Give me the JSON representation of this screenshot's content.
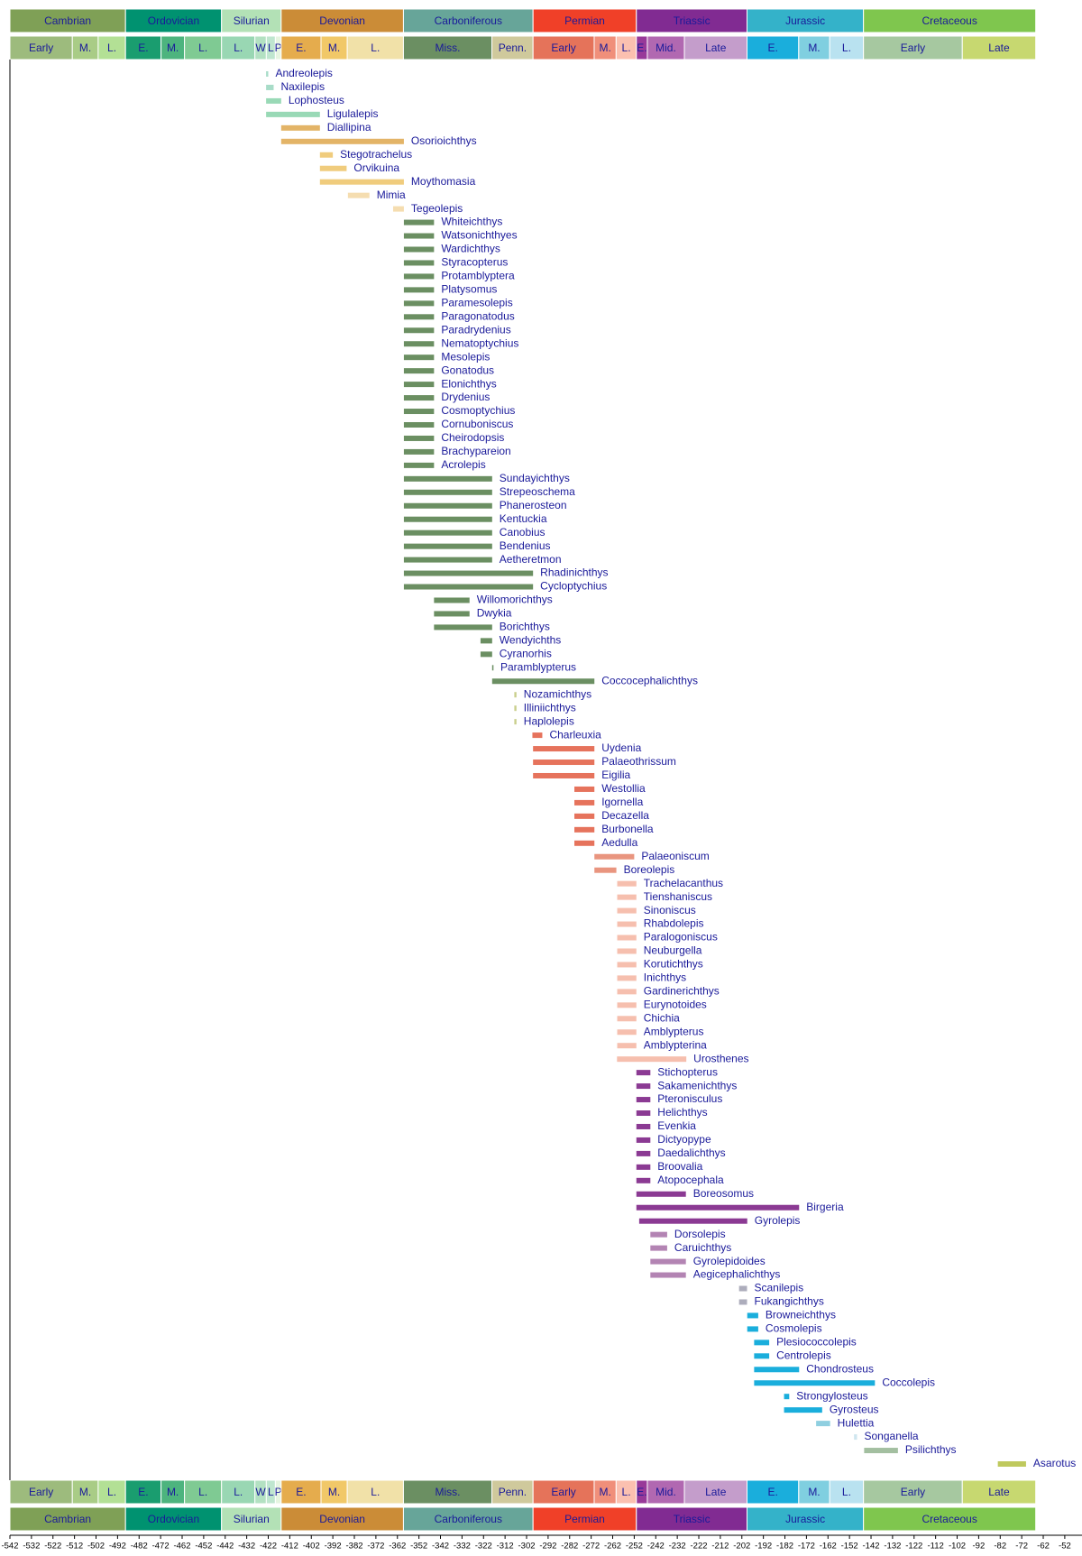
{
  "chart_data": {
    "type": "range",
    "xlim": [
      -542,
      -44
    ],
    "xticks": [
      -542,
      -532,
      -522,
      -512,
      -502,
      -492,
      -482,
      -472,
      -462,
      -452,
      -442,
      -432,
      -422,
      -412,
      -402,
      -392,
      -382,
      -372,
      -362,
      -352,
      -342,
      -332,
      -322,
      -312,
      -302,
      -292,
      -282,
      -272,
      -262,
      -252,
      -242,
      -232,
      -222,
      -212,
      -202,
      -192,
      -182,
      -172,
      -162,
      -152,
      -142,
      -132,
      -122,
      -112,
      -102,
      -92,
      -82,
      -72,
      -62,
      -52
    ],
    "label_color": "#1a1a9a",
    "periods": [
      {
        "name": "Cambrian",
        "start": -542,
        "end": -488.3,
        "color": "#7fa056"
      },
      {
        "name": "Ordovician",
        "start": -488.3,
        "end": -443.7,
        "color": "#009270"
      },
      {
        "name": "Silurian",
        "start": -443.7,
        "end": -416,
        "color": "#b3e1b6"
      },
      {
        "name": "Devonian",
        "start": -416,
        "end": -359.2,
        "color": "#cb8c37"
      },
      {
        "name": "Carboniferous",
        "start": -359.2,
        "end": -299,
        "color": "#67a599"
      },
      {
        "name": "Permian",
        "start": -299,
        "end": -251,
        "color": "#f04028"
      },
      {
        "name": "Triassic",
        "start": -251,
        "end": -199.6,
        "color": "#812b92"
      },
      {
        "name": "Jurassic",
        "start": -199.6,
        "end": -145.5,
        "color": "#34b2c9"
      },
      {
        "name": "Cretaceous",
        "start": -145.5,
        "end": -65.5,
        "color": "#7fc64e"
      }
    ],
    "epochs": [
      {
        "name": "Early",
        "start": -542,
        "end": -513,
        "color": "#9dbb7d"
      },
      {
        "name": "M.",
        "start": -513,
        "end": -501,
        "color": "#a9cc86"
      },
      {
        "name": "L.",
        "start": -501,
        "end": -488.3,
        "color": "#b3e095"
      },
      {
        "name": "E.",
        "start": -488.3,
        "end": -471.8,
        "color": "#1a9d6f"
      },
      {
        "name": "M.",
        "start": -471.8,
        "end": -460.9,
        "color": "#4db47e"
      },
      {
        "name": "L.",
        "start": -460.9,
        "end": -443.7,
        "color": "#7fca93"
      },
      {
        "name": "L.",
        "start": -443.7,
        "end": -428.2,
        "color": "#99d7b3"
      },
      {
        "name": "W",
        "start": -428.2,
        "end": -422.9,
        "color": "#b3e1c2"
      },
      {
        "name": "L",
        "start": -422.9,
        "end": -418.7,
        "color": "#bfe6cf"
      },
      {
        "name": "P",
        "start": -418.7,
        "end": -416,
        "color": "#e6f5e1"
      },
      {
        "name": "E.",
        "start": -416,
        "end": -397.5,
        "color": "#e5ac4d"
      },
      {
        "name": "M.",
        "start": -397.5,
        "end": -385.3,
        "color": "#f1c868"
      },
      {
        "name": "L.",
        "start": -385.3,
        "end": -359.2,
        "color": "#f1e1a8"
      },
      {
        "name": "Miss.",
        "start": -359.2,
        "end": -318.1,
        "color": "#6b8f62"
      },
      {
        "name": "Penn.",
        "start": -318.1,
        "end": -299,
        "color": "#cfc99c"
      },
      {
        "name": "Early",
        "start": -299,
        "end": -270.6,
        "color": "#e5735a"
      },
      {
        "name": "M.",
        "start": -270.6,
        "end": -260.4,
        "color": "#f08f7a"
      },
      {
        "name": "L.",
        "start": -260.4,
        "end": -251,
        "color": "#fbc0b0"
      },
      {
        "name": "E.",
        "start": -251,
        "end": -245.9,
        "color": "#983999"
      },
      {
        "name": "Mid.",
        "start": -245.9,
        "end": -228.7,
        "color": "#b168b1"
      },
      {
        "name": "Late",
        "start": -228.7,
        "end": -199.6,
        "color": "#c49dcb"
      },
      {
        "name": "E.",
        "start": -199.6,
        "end": -175.6,
        "color": "#1aaedc"
      },
      {
        "name": "M.",
        "start": -175.6,
        "end": -161.2,
        "color": "#80cfe0"
      },
      {
        "name": "L.",
        "start": -161.2,
        "end": -145.5,
        "color": "#b9e2f0"
      },
      {
        "name": "Early",
        "start": -145.5,
        "end": -99.6,
        "color": "#a6c8a0"
      },
      {
        "name": "Late",
        "start": -99.6,
        "end": -65.5,
        "color": "#c7d870"
      }
    ],
    "series": [
      {
        "name": "Andreolepis",
        "color": "#a8dcc8",
        "values": [
          -423,
          -422
        ]
      },
      {
        "name": "Naxilepis",
        "color": "#a8dcc8",
        "values": [
          -423,
          -419.5
        ]
      },
      {
        "name": "Lophosteus",
        "color": "#99d9b6",
        "values": [
          -423,
          -416
        ]
      },
      {
        "name": "Ligulalepis",
        "color": "#99d9b6",
        "values": [
          -423,
          -398
        ]
      },
      {
        "name": "Diallipina",
        "color": "#e3b467",
        "values": [
          -416,
          -398
        ]
      },
      {
        "name": "Osorioichthys",
        "color": "#e3b467",
        "values": [
          -416,
          -359
        ]
      },
      {
        "name": "Stegotrachelus",
        "color": "#f0cc7d",
        "values": [
          -398,
          -392
        ]
      },
      {
        "name": "Orvikuina",
        "color": "#f0cc7d",
        "values": [
          -398,
          -385.6
        ]
      },
      {
        "name": "Moythomasia",
        "color": "#f0cc7d",
        "values": [
          -398,
          -359
        ]
      },
      {
        "name": "Mimia",
        "color": "#f5ddb0",
        "values": [
          -385,
          -375
        ]
      },
      {
        "name": "Tegeolepis",
        "color": "#f5ddb0",
        "values": [
          -364,
          -359
        ]
      },
      {
        "name": "Whiteichthys",
        "color": "#6b8f62",
        "values": [
          -359,
          -345
        ]
      },
      {
        "name": "Watsonichthyes",
        "color": "#6b8f62",
        "values": [
          -359,
          -345
        ]
      },
      {
        "name": "Wardichthys",
        "color": "#6b8f62",
        "values": [
          -359,
          -345
        ]
      },
      {
        "name": "Styracopterus",
        "color": "#6b8f62",
        "values": [
          -359,
          -345
        ]
      },
      {
        "name": "Protamblyptera",
        "color": "#6b8f62",
        "values": [
          -359,
          -345
        ]
      },
      {
        "name": "Platysomus",
        "color": "#6b8f62",
        "values": [
          -359,
          -345
        ]
      },
      {
        "name": "Paramesolepis",
        "color": "#6b8f62",
        "values": [
          -359,
          -345
        ]
      },
      {
        "name": "Paragonatodus",
        "color": "#6b8f62",
        "values": [
          -359,
          -345
        ]
      },
      {
        "name": "Paradrydenius",
        "color": "#6b8f62",
        "values": [
          -359,
          -345
        ]
      },
      {
        "name": "Nematoptychius",
        "color": "#6b8f62",
        "values": [
          -359,
          -345
        ]
      },
      {
        "name": "Mesolepis",
        "color": "#6b8f62",
        "values": [
          -359,
          -345
        ]
      },
      {
        "name": "Gonatodus",
        "color": "#6b8f62",
        "values": [
          -359,
          -345
        ]
      },
      {
        "name": "Elonichthys",
        "color": "#6b8f62",
        "values": [
          -359,
          -345
        ]
      },
      {
        "name": "Drydenius",
        "color": "#6b8f62",
        "values": [
          -359,
          -345
        ]
      },
      {
        "name": "Cosmoptychius",
        "color": "#6b8f62",
        "values": [
          -359,
          -345
        ]
      },
      {
        "name": "Cornuboniscus",
        "color": "#6b8f62",
        "values": [
          -359,
          -345
        ]
      },
      {
        "name": "Cheirodopsis",
        "color": "#6b8f62",
        "values": [
          -359,
          -345
        ]
      },
      {
        "name": "Brachypareion",
        "color": "#6b8f62",
        "values": [
          -359,
          -345
        ]
      },
      {
        "name": "Acrolepis",
        "color": "#6b8f62",
        "values": [
          -359,
          -345
        ]
      },
      {
        "name": "Sundayichthys",
        "color": "#6b8f62",
        "values": [
          -359,
          -318
        ]
      },
      {
        "name": "Strepeoschema",
        "color": "#6b8f62",
        "values": [
          -359,
          -318
        ]
      },
      {
        "name": "Phanerosteon",
        "color": "#6b8f62",
        "values": [
          -359,
          -318
        ]
      },
      {
        "name": "Kentuckia",
        "color": "#6b8f62",
        "values": [
          -359,
          -318
        ]
      },
      {
        "name": "Canobius",
        "color": "#6b8f62",
        "values": [
          -359,
          -318
        ]
      },
      {
        "name": "Bendenius",
        "color": "#6b8f62",
        "values": [
          -359,
          -318
        ]
      },
      {
        "name": "Aetheretmon",
        "color": "#6b8f62",
        "values": [
          -359,
          -318
        ]
      },
      {
        "name": "Rhadinichthys",
        "color": "#6b8f62",
        "values": [
          -359,
          -299
        ]
      },
      {
        "name": "Cycloptychius",
        "color": "#6b8f62",
        "values": [
          -359,
          -299
        ]
      },
      {
        "name": "Willomorichthys",
        "color": "#6b8f62",
        "values": [
          -345,
          -328.5
        ]
      },
      {
        "name": "Dwykia",
        "color": "#6b8f62",
        "values": [
          -345,
          -328.5
        ]
      },
      {
        "name": "Borichthys",
        "color": "#6b8f62",
        "values": [
          -345,
          -318
        ]
      },
      {
        "name": "Wendyichths",
        "color": "#6b8f62",
        "values": [
          -323.4,
          -318
        ]
      },
      {
        "name": "Cyranorhis",
        "color": "#6b8f62",
        "values": [
          -323.4,
          -318
        ]
      },
      {
        "name": "Paramblypterus",
        "color": "#6b8f62",
        "values": [
          -318,
          -317.5
        ]
      },
      {
        "name": "Coccocephalichthys",
        "color": "#6b8f62",
        "values": [
          -318,
          -270.5
        ]
      },
      {
        "name": "Nozamichthys",
        "color": "#c9cf8c",
        "values": [
          -307.7,
          -306.7
        ]
      },
      {
        "name": "Illiniichthys",
        "color": "#c9cf8c",
        "values": [
          -307.7,
          -306.7
        ]
      },
      {
        "name": "Haplolepis",
        "color": "#c9cf8c",
        "values": [
          -307.7,
          -306.7
        ]
      },
      {
        "name": "Charleuxia",
        "color": "#e6735c",
        "values": [
          -299.3,
          -294.7
        ]
      },
      {
        "name": "Uydenia",
        "color": "#e6735c",
        "values": [
          -299,
          -270.5
        ]
      },
      {
        "name": "Palaeothrissum",
        "color": "#e6735c",
        "values": [
          -299,
          -270.5
        ]
      },
      {
        "name": "Eigilia",
        "color": "#e6735c",
        "values": [
          -299,
          -270.5
        ]
      },
      {
        "name": "Westollia",
        "color": "#e6735c",
        "values": [
          -279.8,
          -270.5
        ]
      },
      {
        "name": "Igornella",
        "color": "#e6735c",
        "values": [
          -279.8,
          -270.5
        ]
      },
      {
        "name": "Decazella",
        "color": "#e6735c",
        "values": [
          -279.8,
          -270.5
        ]
      },
      {
        "name": "Burbonella",
        "color": "#e6735c",
        "values": [
          -279.8,
          -270.5
        ]
      },
      {
        "name": "Aedulla",
        "color": "#e6735c",
        "values": [
          -279.8,
          -270.5
        ]
      },
      {
        "name": "Palaeoniscum",
        "color": "#e9957f",
        "values": [
          -270.5,
          -252
        ]
      },
      {
        "name": "Boreolepis",
        "color": "#e9957f",
        "values": [
          -270.5,
          -260.3
        ]
      },
      {
        "name": "Trachelacanthus",
        "color": "#f6bfae",
        "values": [
          -259.9,
          -251
        ]
      },
      {
        "name": "Tienshaniscus",
        "color": "#f6bfae",
        "values": [
          -259.9,
          -251
        ]
      },
      {
        "name": "Sinoniscus",
        "color": "#f6bfae",
        "values": [
          -259.9,
          -251
        ]
      },
      {
        "name": "Rhabdolepis",
        "color": "#f6bfae",
        "values": [
          -259.9,
          -251
        ]
      },
      {
        "name": "Paralogoniscus",
        "color": "#f6bfae",
        "values": [
          -259.9,
          -251
        ]
      },
      {
        "name": "Neuburgella",
        "color": "#f6bfae",
        "values": [
          -259.9,
          -251
        ]
      },
      {
        "name": "Korutichthys",
        "color": "#f6bfae",
        "values": [
          -259.9,
          -251
        ]
      },
      {
        "name": "Inichthys",
        "color": "#f6bfae",
        "values": [
          -259.9,
          -251
        ]
      },
      {
        "name": "Gardinerichthys",
        "color": "#f6bfae",
        "values": [
          -259.9,
          -251
        ]
      },
      {
        "name": "Eurynotoides",
        "color": "#f6bfae",
        "values": [
          -259.9,
          -251
        ]
      },
      {
        "name": "Chichia",
        "color": "#f6bfae",
        "values": [
          -259.9,
          -251
        ]
      },
      {
        "name": "Amblypterus",
        "color": "#f6bfae",
        "values": [
          -259.9,
          -251
        ]
      },
      {
        "name": "Amblypterina",
        "color": "#f6bfae",
        "values": [
          -259.9,
          -251
        ]
      },
      {
        "name": "Urosthenes",
        "color": "#f6bfae",
        "values": [
          -260,
          -227.8
        ]
      },
      {
        "name": "Stichopterus",
        "color": "#8b3a93",
        "values": [
          -251,
          -244.5
        ]
      },
      {
        "name": "Sakamenichthys",
        "color": "#8b3a93",
        "values": [
          -251,
          -244.5
        ]
      },
      {
        "name": "Pteronisculus",
        "color": "#8b3a93",
        "values": [
          -251,
          -244.5
        ]
      },
      {
        "name": "Helichthys",
        "color": "#8b3a93",
        "values": [
          -251,
          -244.5
        ]
      },
      {
        "name": "Evenkia",
        "color": "#8b3a93",
        "values": [
          -251,
          -244.5
        ]
      },
      {
        "name": "Dictyopype",
        "color": "#8b3a93",
        "values": [
          -251,
          -244.5
        ]
      },
      {
        "name": "Daedalichthys",
        "color": "#8b3a93",
        "values": [
          -251,
          -244.5
        ]
      },
      {
        "name": "Broovalia",
        "color": "#8b3a93",
        "values": [
          -251,
          -244.5
        ]
      },
      {
        "name": "Atopocephala",
        "color": "#8b3a93",
        "values": [
          -251,
          -244.5
        ]
      },
      {
        "name": "Boreosomus",
        "color": "#8b3a93",
        "values": [
          -251,
          -228
        ]
      },
      {
        "name": "Birgeria",
        "color": "#8b3a93",
        "values": [
          -251,
          -175.4
        ]
      },
      {
        "name": "Gyrolepis",
        "color": "#8b3a93",
        "values": [
          -249.7,
          -199.5
        ]
      },
      {
        "name": "Dorsolepis",
        "color": "#b384b3",
        "values": [
          -244.5,
          -236.7
        ]
      },
      {
        "name": "Caruichthys",
        "color": "#b384b3",
        "values": [
          -244.5,
          -236.7
        ]
      },
      {
        "name": "Gyrolepidoides",
        "color": "#b384b3",
        "values": [
          -244.5,
          -228
        ]
      },
      {
        "name": "Aegicephalichthys",
        "color": "#b384b3",
        "values": [
          -244.5,
          -228
        ]
      },
      {
        "name": "Scanilepis",
        "color": "#adadbc",
        "values": [
          -203.3,
          -199.6
        ]
      },
      {
        "name": "Fukangichthys",
        "color": "#adadbc",
        "values": [
          -203.3,
          -199.6
        ]
      },
      {
        "name": "Browneichthys",
        "color": "#1aaedc",
        "values": [
          -199.5,
          -194.4
        ]
      },
      {
        "name": "Cosmolepis",
        "color": "#1aaedc",
        "values": [
          -199.5,
          -194.4
        ]
      },
      {
        "name": "Plesiococcolepis",
        "color": "#1aaedc",
        "values": [
          -196.3,
          -189.3
        ]
      },
      {
        "name": "Centrolepis",
        "color": "#1aaedc",
        "values": [
          -196.3,
          -189.3
        ]
      },
      {
        "name": "Chondrosteus",
        "color": "#1aaedc",
        "values": [
          -196.3,
          -175.4
        ]
      },
      {
        "name": "Coccolepis",
        "color": "#1aaedc",
        "values": [
          -196.3,
          -140.2
        ]
      },
      {
        "name": "Strongylosteus",
        "color": "#1aaedc",
        "values": [
          -182.4,
          -180
        ]
      },
      {
        "name": "Gyrosteus",
        "color": "#1aaedc",
        "values": [
          -182.4,
          -164.7
        ]
      },
      {
        "name": "Hulettia",
        "color": "#8fcfe0",
        "values": [
          -167.5,
          -161
        ]
      },
      {
        "name": "Songanella",
        "color": "#cfe6ef",
        "values": [
          -149.9,
          -148.5
        ]
      },
      {
        "name": "Psilichthys",
        "color": "#a3bfa0",
        "values": [
          -145.2,
          -129.5
        ]
      },
      {
        "name": "Asarotus",
        "color": "#bfc95d",
        "values": [
          -83.1,
          -70
        ]
      }
    ]
  }
}
